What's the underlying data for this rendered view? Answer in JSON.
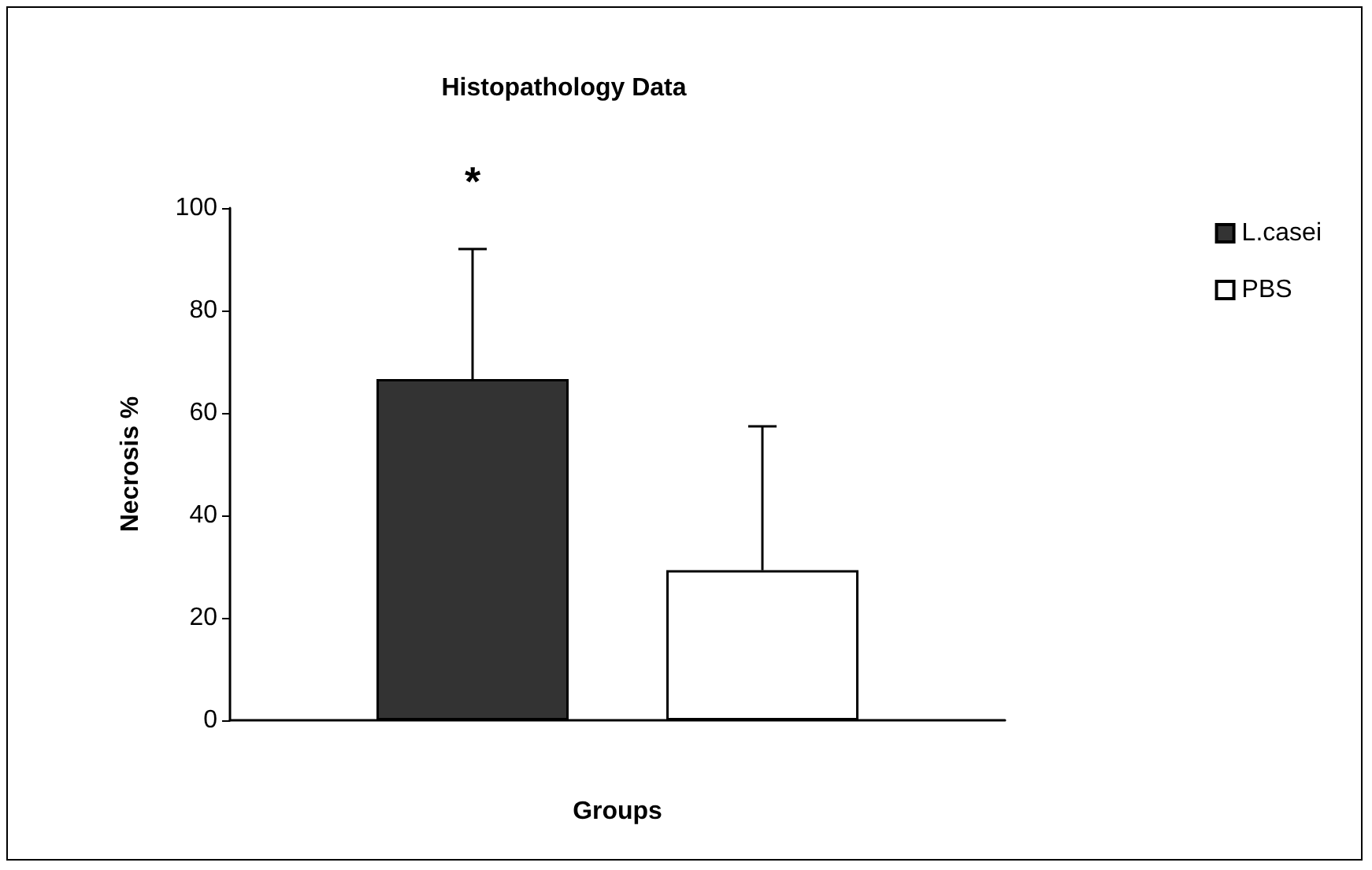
{
  "chart_data": {
    "type": "bar",
    "title": "Histopathology Data",
    "xlabel": "Groups",
    "ylabel": "Necrosis %",
    "categories": [
      null
    ],
    "series": [
      {
        "name": "L.casei",
        "color": "#333333",
        "values": [
          66.6
        ],
        "errors": [
          [
            66.6,
            92.0
          ]
        ]
      },
      {
        "name": "PBS",
        "color": "#ffffff",
        "values": [
          29.3
        ],
        "errors": [
          [
            29.3,
            57.4
          ]
        ]
      }
    ],
    "ylim": [
      0,
      100
    ],
    "yticks": [
      0,
      20,
      40,
      60,
      80,
      100
    ],
    "grid": false,
    "legend": "right",
    "annotations": [
      "*"
    ]
  }
}
